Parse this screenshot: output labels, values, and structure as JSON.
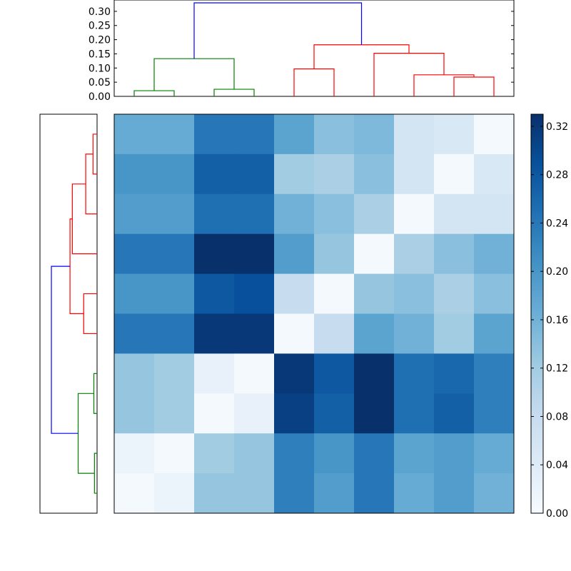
{
  "colors": {
    "cluster_a": "#ff0000",
    "cluster_b": "#008000",
    "root": "#0000ff",
    "cmap_low": "#f7fbff",
    "cmap_high": "#08306b"
  },
  "chart_data": [
    {
      "type": "dendrogram",
      "orientation": "top",
      "ylim": [
        0,
        0.34
      ],
      "ytick_labels": [
        "0.00",
        "0.05",
        "0.10",
        "0.15",
        "0.20",
        "0.25",
        "0.30"
      ],
      "yticks": [
        0,
        0.05,
        0.1,
        0.15,
        0.2,
        0.25,
        0.3
      ],
      "leaf_count": 10,
      "merges": [
        {
          "left": 0,
          "right": 1,
          "height": 0.02,
          "left_height": 0,
          "right_height": 0,
          "color": "#008000"
        },
        {
          "left": 2,
          "right": 3,
          "height": 0.025,
          "left_height": 0,
          "right_height": 0,
          "color": "#008000"
        },
        {
          "left": 0.5,
          "right": 2.5,
          "height": 0.133,
          "left_height": 0.02,
          "right_height": 0.025,
          "color": "#008000"
        },
        {
          "left": 4,
          "right": 5,
          "height": 0.097,
          "left_height": 0,
          "right_height": 0,
          "color": "#ff0000"
        },
        {
          "left": 8,
          "right": 9,
          "height": 0.068,
          "left_height": 0,
          "right_height": 0,
          "color": "#ff0000"
        },
        {
          "left": 7,
          "right": 8.5,
          "height": 0.076,
          "left_height": 0,
          "right_height": 0.068,
          "color": "#ff0000"
        },
        {
          "left": 6,
          "right": 7.75,
          "height": 0.152,
          "left_height": 0,
          "right_height": 0.076,
          "color": "#ff0000"
        },
        {
          "left": 4.5,
          "right": 6.875,
          "height": 0.182,
          "left_height": 0.097,
          "right_height": 0.152,
          "color": "#ff0000"
        },
        {
          "left": 1.5,
          "right": 5.6875,
          "height": 0.33,
          "left_height": 0.133,
          "right_height": 0.182,
          "color": "#0000ff"
        }
      ]
    },
    {
      "type": "dendrogram",
      "orientation": "left",
      "leaf_count": 10,
      "merges": [
        {
          "left": 0,
          "right": 1,
          "height": 0.014,
          "left_height": 0,
          "right_height": 0,
          "color": "#ff0000"
        },
        {
          "left": 0.5,
          "right": 2,
          "height": 0.039,
          "left_height": 0.014,
          "right_height": 0,
          "color": "#ff0000"
        },
        {
          "left": 1.25,
          "right": 3,
          "height": 0.085,
          "left_height": 0.039,
          "right_height": 0,
          "color": "#ff0000"
        },
        {
          "left": 4,
          "right": 5,
          "height": 0.046,
          "left_height": 0,
          "right_height": 0,
          "color": "#ff0000"
        },
        {
          "left": 2.125,
          "right": 4.5,
          "height": 0.093,
          "left_height": 0.085,
          "right_height": 0.046,
          "color": "#ff0000"
        },
        {
          "left": 6,
          "right": 7,
          "height": 0.011,
          "left_height": 0,
          "right_height": 0,
          "color": "#008000"
        },
        {
          "left": 8,
          "right": 9,
          "height": 0.009,
          "left_height": 0,
          "right_height": 0,
          "color": "#008000"
        },
        {
          "left": 6.5,
          "right": 8.5,
          "height": 0.065,
          "left_height": 0.011,
          "right_height": 0.009,
          "color": "#008000"
        },
        {
          "left": 3.3125,
          "right": 7.5,
          "height": 0.157,
          "left_height": 0.093,
          "right_height": 0.065,
          "color": "#0000ff"
        }
      ]
    },
    {
      "type": "heatmap",
      "rows": 10,
      "cols": 10,
      "vmin": 0,
      "vmax": 0.33,
      "values": [
        [
          0.17,
          0.17,
          0.24,
          0.24,
          0.18,
          0.14,
          0.15,
          0.06,
          0.05,
          0.005
        ],
        [
          0.2,
          0.2,
          0.27,
          0.27,
          0.12,
          0.11,
          0.14,
          0.06,
          0.005,
          0.05
        ],
        [
          0.19,
          0.19,
          0.25,
          0.25,
          0.16,
          0.14,
          0.11,
          0.005,
          0.06,
          0.06
        ],
        [
          0.24,
          0.24,
          0.33,
          0.33,
          0.19,
          0.13,
          0.005,
          0.11,
          0.14,
          0.16
        ],
        [
          0.2,
          0.2,
          0.28,
          0.29,
          0.08,
          0.005,
          0.13,
          0.14,
          0.11,
          0.14
        ],
        [
          0.24,
          0.24,
          0.32,
          0.32,
          0.005,
          0.08,
          0.18,
          0.16,
          0.12,
          0.18
        ],
        [
          0.13,
          0.12,
          0.025,
          0.005,
          0.32,
          0.28,
          0.33,
          0.25,
          0.26,
          0.23
        ],
        [
          0.13,
          0.12,
          0.005,
          0.025,
          0.31,
          0.27,
          0.33,
          0.25,
          0.27,
          0.23
        ],
        [
          0.02,
          0.005,
          0.12,
          0.13,
          0.23,
          0.2,
          0.24,
          0.18,
          0.19,
          0.17
        ],
        [
          0.005,
          0.02,
          0.13,
          0.13,
          0.23,
          0.19,
          0.24,
          0.17,
          0.19,
          0.16
        ]
      ]
    },
    {
      "type": "colorbar",
      "vmin": 0,
      "vmax": 0.33,
      "ticks": [
        0,
        0.04,
        0.08,
        0.12,
        0.16,
        0.2,
        0.24,
        0.28,
        0.32
      ],
      "tick_labels": [
        "0.00",
        "0.04",
        "0.08",
        "0.12",
        "0.16",
        "0.20",
        "0.24",
        "0.28",
        "0.32"
      ]
    }
  ]
}
